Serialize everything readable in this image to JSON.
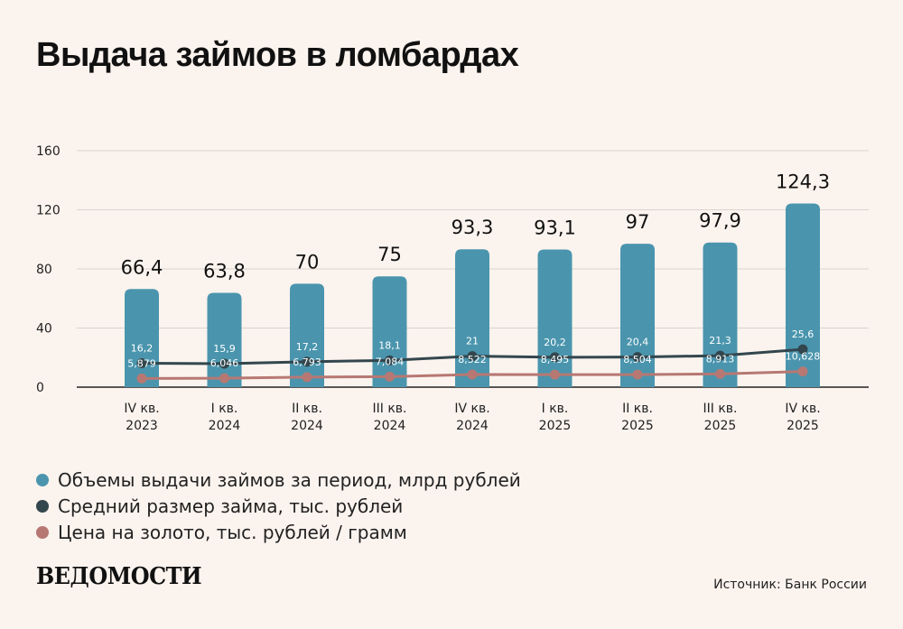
{
  "title": "Выдача займов в ломбардах",
  "legend": [
    {
      "label": "Объемы выдачи займов за период, млрд рублей",
      "color": "#4a95ad"
    },
    {
      "label": "Средний размер займа, тыс. рублей",
      "color": "#33464d"
    },
    {
      "label": "Цена на золото, тыс. рублей / грамм",
      "color": "#b77873"
    }
  ],
  "brand": "ВЕДОМОСТИ",
  "source": "Источник: Банк России",
  "chart_data": {
    "type": "bar",
    "categories": [
      [
        "IV кв.",
        "2023"
      ],
      [
        "I кв.",
        "2024"
      ],
      [
        "II кв.",
        "2024"
      ],
      [
        "III кв.",
        "2024"
      ],
      [
        "IV кв.",
        "2024"
      ],
      [
        "I кв.",
        "2025"
      ],
      [
        "II кв.",
        "2025"
      ],
      [
        "III кв.",
        "2025"
      ],
      [
        "IV кв.",
        "2025"
      ]
    ],
    "ylim": [
      0,
      160
    ],
    "yticks": [
      0,
      40,
      80,
      120,
      160
    ],
    "grid": true,
    "series": [
      {
        "name": "Объемы выдачи займов за период, млрд рублей",
        "type": "bar",
        "color": "#4a95ad",
        "values": [
          66.4,
          63.8,
          70,
          75,
          93.3,
          93.1,
          97,
          97.9,
          124.3
        ],
        "labels": [
          "66,4",
          "63,8",
          "70",
          "75",
          "93,3",
          "93,1",
          "97",
          "97,9",
          "124,3"
        ]
      },
      {
        "name": "Средний размер займа, тыс. рублей",
        "type": "line",
        "color": "#33464d",
        "values": [
          16.2,
          15.9,
          17.2,
          18.1,
          21,
          20.2,
          20.4,
          21.3,
          25.6
        ],
        "labels": [
          "16,2",
          "15,9",
          "17,2",
          "18,1",
          "21",
          "20,2",
          "20,4",
          "21,3",
          "25,6"
        ]
      },
      {
        "name": "Цена на золото, тыс. рублей / грамм",
        "type": "line",
        "color": "#b77873",
        "values": [
          5.879,
          6.046,
          6.793,
          7.084,
          8.522,
          8.495,
          8.504,
          8.913,
          10.628
        ],
        "labels": [
          "5,879",
          "6,046",
          "6,793",
          "7,084",
          "8,522",
          "8,495",
          "8,504",
          "8,913",
          "10,628"
        ]
      }
    ]
  }
}
